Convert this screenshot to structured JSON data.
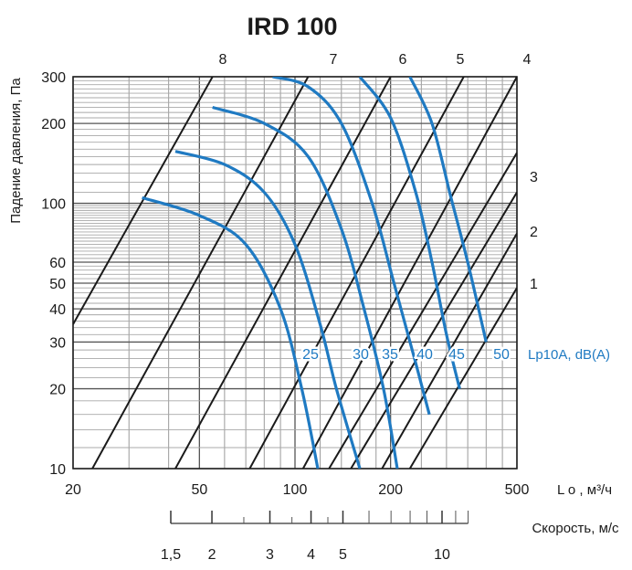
{
  "chart_data": {
    "type": "line",
    "title": "IRD 100",
    "xlabel": "L o , м³/ч",
    "ylabel": "Падение давления, Па",
    "x_scale": "log",
    "y_scale": "log",
    "xlim": [
      20,
      500
    ],
    "ylim": [
      10,
      300
    ],
    "x_ticks": [
      20,
      50,
      100,
      200,
      500
    ],
    "x_tick_labels": [
      "20",
      "50",
      "100",
      "200",
      "500"
    ],
    "y_ticks": [
      10,
      20,
      30,
      40,
      50,
      60,
      100,
      200,
      300
    ],
    "y_tick_labels": [
      "10",
      "20",
      "30",
      "40",
      "50",
      "60",
      "100",
      "200",
      "300"
    ],
    "grid": true,
    "opening_positions": {
      "labels": [
        "8",
        "7",
        "6",
        "5",
        "4",
        "3",
        "2",
        "1"
      ],
      "lines": [
        {
          "name": "8",
          "points": [
            [
              20,
              35
            ],
            [
              55,
              300
            ]
          ]
        },
        {
          "name": "7",
          "points": [
            [
              23,
              10
            ],
            [
              110,
              300
            ]
          ]
        },
        {
          "name": "6",
          "points": [
            [
              42,
              10
            ],
            [
              200,
              300
            ]
          ]
        },
        {
          "name": "5",
          "points": [
            [
              72,
              10
            ],
            [
              340,
              300
            ]
          ]
        },
        {
          "name": "4",
          "points": [
            [
              106,
              10
            ],
            [
              500,
              300
            ]
          ]
        },
        {
          "name": "3",
          "points": [
            [
              128,
              10
            ],
            [
              500,
              155
            ]
          ]
        },
        {
          "name": "2",
          "points": [
            [
              150,
              10
            ],
            [
              500,
              110
            ]
          ]
        },
        {
          "name": "1",
          "points": [
            [
              188,
              10
            ],
            [
              500,
              77
            ]
          ]
        },
        {
          "name": "",
          "points": [
            [
              230,
              10
            ],
            [
              500,
              48
            ]
          ]
        }
      ]
    },
    "sound_level": {
      "label": "Lp10A, dB(A)",
      "series": [
        {
          "name": "25",
          "points": [
            [
              33,
              105
            ],
            [
              50,
              90
            ],
            [
              70,
              70
            ],
            [
              90,
              40
            ],
            [
              105,
              20
            ],
            [
              118,
              10
            ]
          ]
        },
        {
          "name": "30",
          "points": [
            [
              42,
              157
            ],
            [
              60,
              140
            ],
            [
              80,
              110
            ],
            [
              100,
              70
            ],
            [
              120,
              35
            ],
            [
              135,
              20
            ],
            [
              160,
              10
            ]
          ]
        },
        {
          "name": "35",
          "points": [
            [
              55,
              230
            ],
            [
              80,
              200
            ],
            [
              110,
              150
            ],
            [
              140,
              80
            ],
            [
              165,
              40
            ],
            [
              190,
              20
            ],
            [
              210,
              10
            ]
          ]
        },
        {
          "name": "40",
          "points": [
            [
              85,
              300
            ],
            [
              110,
              275
            ],
            [
              140,
              200
            ],
            [
              175,
              100
            ],
            [
              205,
              50
            ],
            [
              240,
              25
            ],
            [
              265,
              16
            ]
          ]
        },
        {
          "name": "45",
          "points": [
            [
              160,
              300
            ],
            [
              200,
              210
            ],
            [
              240,
              110
            ],
            [
              270,
              60
            ],
            [
              300,
              32
            ],
            [
              330,
              20
            ]
          ]
        },
        {
          "name": "50",
          "points": [
            [
              230,
              300
            ],
            [
              270,
              200
            ],
            [
              310,
              105
            ],
            [
              350,
              60
            ],
            [
              400,
              30
            ]
          ]
        }
      ]
    },
    "velocity_axis": {
      "label": "Скорость, м/с",
      "tick_labels": [
        "1,5",
        "2",
        "3",
        "4",
        "5",
        "10"
      ],
      "major_ticks": [
        1.5,
        2,
        3,
        4,
        5,
        10
      ],
      "minor_ticks": [
        6,
        7,
        8,
        9,
        11,
        12
      ]
    }
  }
}
